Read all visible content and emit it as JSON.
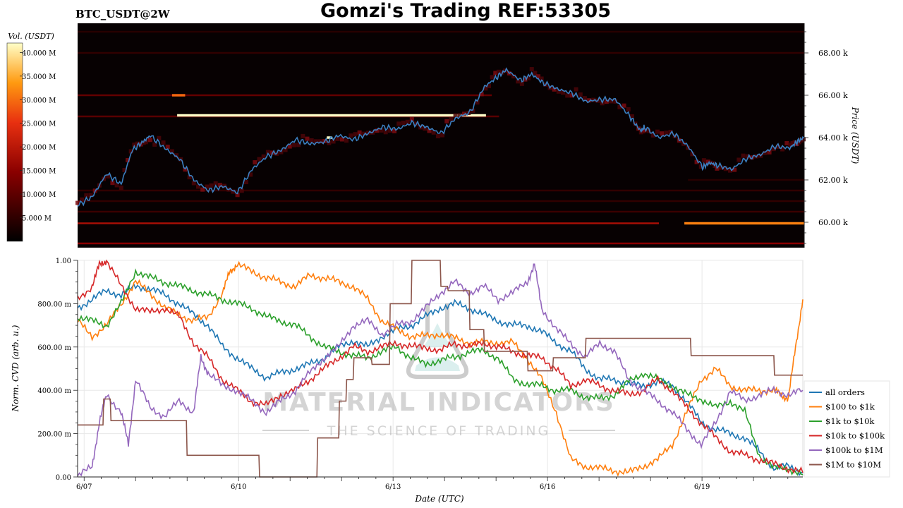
{
  "header": {
    "pair": "BTC_USDT@2W",
    "title": "Gomzi's Trading REF:53305"
  },
  "colors": {
    "heatmap_bg": "#070102",
    "price_line": "#3b7fc0",
    "all_orders": "#1f77b4",
    "r100_1k": "#ff7f0e",
    "r1k_10k": "#2ca02c",
    "r10k_100k": "#d62728",
    "r100k_1m": "#9467bd",
    "r1m_10m": "#8c564b"
  },
  "watermark": {
    "line1": "MATERIAL INDICATORS",
    "line2": "THE SCIENCE OF TRADING"
  },
  "chart_data": [
    {
      "type": "heatmap",
      "title": "",
      "ylabel": "Price (USDT)",
      "colorbar_label": "Vol. (USDT)",
      "colorbar_ticks": [
        "40.000 M",
        "35.000 M",
        "30.000 M",
        "25.000 M",
        "20.000 M",
        "15.000 M",
        "10.000 M",
        "5.000 M"
      ],
      "colorbar_range": [
        0,
        40000000
      ],
      "ylim": [
        58800,
        69400
      ],
      "price_ticks": [
        {
          "value": 68000,
          "label": "68.00 k"
        },
        {
          "value": 66000,
          "label": "66.00 k"
        },
        {
          "value": 64000,
          "label": "64.00 k"
        },
        {
          "value": 62000,
          "label": "62.00 k"
        },
        {
          "value": 60000,
          "label": "60.00 k"
        }
      ],
      "liquidity_bands": [
        {
          "price": 59000,
          "volume": 14000000,
          "from": 0.0,
          "to": 1.0
        },
        {
          "price": 59950,
          "volume": 17000000,
          "from": 0.0,
          "to": 0.8
        },
        {
          "price": 59950,
          "volume": 30000000,
          "from": 0.835,
          "to": 1.0
        },
        {
          "price": 60500,
          "volume": 6000000,
          "from": 0.0,
          "to": 1.0
        },
        {
          "price": 61000,
          "volume": 5000000,
          "from": 0.0,
          "to": 1.0
        },
        {
          "price": 61500,
          "volume": 5000000,
          "from": 0.0,
          "to": 1.0
        },
        {
          "price": 62000,
          "volume": 4000000,
          "from": 0.84,
          "to": 1.0
        },
        {
          "price": 65000,
          "volume": 9000000,
          "from": 0.0,
          "to": 0.58
        },
        {
          "price": 66000,
          "volume": 10000000,
          "from": 0.0,
          "to": 0.57
        },
        {
          "price": 66000,
          "volume": 28000000,
          "from": 0.13,
          "to": 0.148
        },
        {
          "price": 65050,
          "volume": 40000000,
          "from": 0.137,
          "to": 0.562
        },
        {
          "price": 64000,
          "volume": 40000000,
          "from": 0.343,
          "to": 0.35
        },
        {
          "price": 68000,
          "volume": 5000000,
          "from": 0.0,
          "to": 1.0
        },
        {
          "price": 69000,
          "volume": 4000000,
          "from": 0.0,
          "to": 1.0
        }
      ],
      "price_series": {
        "t": [
          0,
          0.02,
          0.04,
          0.06,
          0.075,
          0.09,
          0.1,
          0.12,
          0.14,
          0.16,
          0.18,
          0.2,
          0.22,
          0.24,
          0.26,
          0.28,
          0.3,
          0.32,
          0.34,
          0.36,
          0.38,
          0.4,
          0.42,
          0.44,
          0.46,
          0.48,
          0.5,
          0.52,
          0.54,
          0.56,
          0.575,
          0.59,
          0.61,
          0.625,
          0.64,
          0.66,
          0.68,
          0.7,
          0.72,
          0.74,
          0.76,
          0.775,
          0.78,
          0.8,
          0.82,
          0.84,
          0.86,
          0.87,
          0.88,
          0.9,
          0.92,
          0.94,
          0.96,
          0.98,
          0.99,
          1.0
        ],
        "price": [
          60800,
          61200,
          62300,
          61800,
          63400,
          63800,
          64100,
          63500,
          63000,
          62000,
          61500,
          61700,
          61400,
          62500,
          63100,
          63400,
          63900,
          63700,
          63800,
          64100,
          63900,
          64200,
          64500,
          64400,
          64700,
          64500,
          64200,
          64900,
          65200,
          66400,
          66800,
          67200,
          66700,
          67000,
          66600,
          66300,
          66100,
          65700,
          65800,
          65800,
          65000,
          64300,
          64500,
          64000,
          64200,
          63600,
          62600,
          62800,
          62700,
          62500,
          63000,
          63200,
          63600,
          63500,
          63800,
          64000
        ]
      }
    },
    {
      "type": "line",
      "title": "",
      "xlabel": "Date (UTC)",
      "ylabel": "Norm. CVD (arb. u.)",
      "ylim": [
        0,
        1
      ],
      "y_ticks": [
        {
          "value": 1.0,
          "label": "1.00"
        },
        {
          "value": 0.8,
          "label": "800.00 m"
        },
        {
          "value": 0.6,
          "label": "600.00 m"
        },
        {
          "value": 0.4,
          "label": "400.00 m"
        },
        {
          "value": 0.2,
          "label": "200.00 m"
        },
        {
          "value": 0.0,
          "label": "0.00"
        }
      ],
      "x_ticks": [
        {
          "t": 0.009,
          "label": "6/07"
        },
        {
          "t": 0.222,
          "label": "6/10"
        },
        {
          "t": 0.435,
          "label": "6/13"
        },
        {
          "t": 0.648,
          "label": "6/16"
        },
        {
          "t": 0.861,
          "label": "6/19"
        }
      ],
      "legend": "right",
      "series": [
        {
          "name": "all orders",
          "t": [
            0,
            0.02,
            0.04,
            0.06,
            0.08,
            0.1,
            0.12,
            0.14,
            0.16,
            0.18,
            0.2,
            0.22,
            0.24,
            0.26,
            0.28,
            0.3,
            0.32,
            0.34,
            0.36,
            0.38,
            0.4,
            0.42,
            0.44,
            0.46,
            0.48,
            0.5,
            0.52,
            0.54,
            0.56,
            0.58,
            0.6,
            0.62,
            0.64,
            0.66,
            0.68,
            0.7,
            0.72,
            0.74,
            0.76,
            0.78,
            0.8,
            0.82,
            0.84,
            0.86,
            0.88,
            0.9,
            0.92,
            0.94,
            0.96,
            0.98,
            1.0
          ],
          "values": [
            0.78,
            0.82,
            0.86,
            0.84,
            0.88,
            0.87,
            0.84,
            0.8,
            0.75,
            0.7,
            0.6,
            0.55,
            0.5,
            0.46,
            0.48,
            0.5,
            0.52,
            0.55,
            0.6,
            0.63,
            0.6,
            0.65,
            0.68,
            0.7,
            0.74,
            0.78,
            0.8,
            0.78,
            0.75,
            0.72,
            0.7,
            0.7,
            0.67,
            0.62,
            0.58,
            0.5,
            0.45,
            0.45,
            0.43,
            0.42,
            0.44,
            0.42,
            0.35,
            0.25,
            0.22,
            0.2,
            0.18,
            0.12,
            0.04,
            0.05,
            0.02
          ]
        },
        {
          "name": "$100 to $1k",
          "t": [
            0,
            0.02,
            0.04,
            0.06,
            0.08,
            0.1,
            0.12,
            0.14,
            0.16,
            0.18,
            0.2,
            0.21,
            0.22,
            0.24,
            0.26,
            0.28,
            0.3,
            0.32,
            0.34,
            0.36,
            0.38,
            0.4,
            0.42,
            0.44,
            0.46,
            0.48,
            0.5,
            0.52,
            0.54,
            0.56,
            0.58,
            0.6,
            0.62,
            0.64,
            0.66,
            0.68,
            0.7,
            0.72,
            0.74,
            0.76,
            0.78,
            0.8,
            0.82,
            0.84,
            0.86,
            0.88,
            0.9,
            0.92,
            0.94,
            0.96,
            0.97,
            0.98,
            0.99,
            1.0
          ],
          "values": [
            0.72,
            0.65,
            0.7,
            0.8,
            0.9,
            0.85,
            0.78,
            0.75,
            0.72,
            0.74,
            0.85,
            0.95,
            0.98,
            0.95,
            0.92,
            0.9,
            0.88,
            0.93,
            0.92,
            0.9,
            0.88,
            0.82,
            0.72,
            0.68,
            0.65,
            0.65,
            0.66,
            0.64,
            0.62,
            0.62,
            0.62,
            0.62,
            0.55,
            0.45,
            0.3,
            0.08,
            0.05,
            0.04,
            0.03,
            0.02,
            0.05,
            0.08,
            0.15,
            0.3,
            0.45,
            0.5,
            0.42,
            0.4,
            0.4,
            0.4,
            0.38,
            0.36,
            0.6,
            0.82
          ]
        },
        {
          "name": "$1k to $10k",
          "t": [
            0,
            0.02,
            0.04,
            0.06,
            0.08,
            0.1,
            0.12,
            0.14,
            0.16,
            0.18,
            0.2,
            0.22,
            0.24,
            0.26,
            0.28,
            0.3,
            0.32,
            0.34,
            0.36,
            0.38,
            0.4,
            0.42,
            0.44,
            0.46,
            0.48,
            0.5,
            0.52,
            0.54,
            0.56,
            0.58,
            0.6,
            0.62,
            0.64,
            0.66,
            0.68,
            0.7,
            0.72,
            0.74,
            0.76,
            0.78,
            0.8,
            0.82,
            0.84,
            0.86,
            0.88,
            0.9,
            0.92,
            0.94,
            0.96,
            0.98,
            1.0
          ],
          "values": [
            0.74,
            0.72,
            0.7,
            0.8,
            0.95,
            0.92,
            0.9,
            0.88,
            0.86,
            0.84,
            0.82,
            0.8,
            0.78,
            0.74,
            0.72,
            0.7,
            0.65,
            0.6,
            0.58,
            0.56,
            0.55,
            0.58,
            0.6,
            0.55,
            0.52,
            0.54,
            0.55,
            0.58,
            0.58,
            0.55,
            0.45,
            0.43,
            0.42,
            0.4,
            0.4,
            0.37,
            0.36,
            0.38,
            0.44,
            0.48,
            0.45,
            0.42,
            0.38,
            0.36,
            0.32,
            0.35,
            0.3,
            0.1,
            0.04,
            0.04,
            0.01
          ]
        },
        {
          "name": "$10k to $100k",
          "t": [
            0,
            0.02,
            0.03,
            0.04,
            0.06,
            0.08,
            0.1,
            0.12,
            0.14,
            0.16,
            0.18,
            0.2,
            0.22,
            0.24,
            0.26,
            0.28,
            0.3,
            0.32,
            0.34,
            0.36,
            0.38,
            0.4,
            0.42,
            0.44,
            0.46,
            0.48,
            0.5,
            0.52,
            0.54,
            0.56,
            0.58,
            0.6,
            0.62,
            0.64,
            0.66,
            0.68,
            0.7,
            0.72,
            0.74,
            0.76,
            0.78,
            0.8,
            0.82,
            0.84,
            0.86,
            0.88,
            0.9,
            0.92,
            0.94,
            0.96,
            0.98,
            1.0
          ],
          "values": [
            0.82,
            0.88,
            0.98,
            1.0,
            0.88,
            0.78,
            0.76,
            0.78,
            0.74,
            0.62,
            0.55,
            0.45,
            0.4,
            0.35,
            0.33,
            0.38,
            0.4,
            0.45,
            0.5,
            0.55,
            0.6,
            0.58,
            0.6,
            0.62,
            0.6,
            0.6,
            0.58,
            0.62,
            0.6,
            0.62,
            0.6,
            0.58,
            0.56,
            0.55,
            0.5,
            0.42,
            0.45,
            0.42,
            0.4,
            0.38,
            0.4,
            0.45,
            0.4,
            0.32,
            0.25,
            0.18,
            0.12,
            0.1,
            0.08,
            0.06,
            0.04,
            0.02
          ]
        },
        {
          "name": "$100k to $1M",
          "t": [
            0,
            0.02,
            0.03,
            0.04,
            0.06,
            0.07,
            0.08,
            0.1,
            0.12,
            0.14,
            0.16,
            0.17,
            0.18,
            0.2,
            0.22,
            0.24,
            0.26,
            0.28,
            0.3,
            0.32,
            0.34,
            0.36,
            0.38,
            0.4,
            0.42,
            0.44,
            0.46,
            0.48,
            0.5,
            0.52,
            0.54,
            0.56,
            0.58,
            0.6,
            0.62,
            0.63,
            0.64,
            0.66,
            0.68,
            0.7,
            0.72,
            0.74,
            0.76,
            0.78,
            0.8,
            0.82,
            0.84,
            0.86,
            0.88,
            0.9,
            0.92,
            0.94,
            0.96,
            0.98,
            1.0
          ],
          "values": [
            0.0,
            0.05,
            0.25,
            0.38,
            0.3,
            0.15,
            0.45,
            0.32,
            0.28,
            0.35,
            0.3,
            0.55,
            0.48,
            0.42,
            0.4,
            0.35,
            0.3,
            0.35,
            0.4,
            0.48,
            0.55,
            0.6,
            0.7,
            0.72,
            0.66,
            0.7,
            0.72,
            0.78,
            0.85,
            0.9,
            0.85,
            0.88,
            0.82,
            0.85,
            0.9,
            0.98,
            0.78,
            0.68,
            0.62,
            0.55,
            0.62,
            0.58,
            0.45,
            0.4,
            0.35,
            0.3,
            0.22,
            0.15,
            0.25,
            0.4,
            0.35,
            0.38,
            0.4,
            0.38,
            0.4
          ]
        },
        {
          "name": "$1M to $10M",
          "t": [
            0,
            0.035,
            0.036,
            0.045,
            0.046,
            0.15,
            0.151,
            0.25,
            0.251,
            0.32,
            0.321,
            0.33,
            0.331,
            0.36,
            0.361,
            0.37,
            0.371,
            0.38,
            0.381,
            0.405,
            0.406,
            0.43,
            0.431,
            0.46,
            0.461,
            0.5,
            0.501,
            0.51,
            0.511,
            0.54,
            0.541,
            0.56,
            0.561,
            0.62,
            0.621,
            0.655,
            0.656,
            0.7,
            0.701,
            0.75,
            0.751,
            0.845,
            0.846,
            0.96,
            0.961,
            1.0
          ],
          "values": [
            0.24,
            0.24,
            0.36,
            0.36,
            0.26,
            0.26,
            0.1,
            0.1,
            0.0,
            0.0,
            0.0,
            0.0,
            0.18,
            0.18,
            0.35,
            0.35,
            0.45,
            0.45,
            0.55,
            0.55,
            0.52,
            0.52,
            0.8,
            0.8,
            1.0,
            1.0,
            0.88,
            0.88,
            0.86,
            0.86,
            0.68,
            0.68,
            0.58,
            0.58,
            0.49,
            0.49,
            0.55,
            0.55,
            0.64,
            0.64,
            0.64,
            0.64,
            0.56,
            0.56,
            0.47,
            0.47
          ]
        }
      ]
    }
  ]
}
